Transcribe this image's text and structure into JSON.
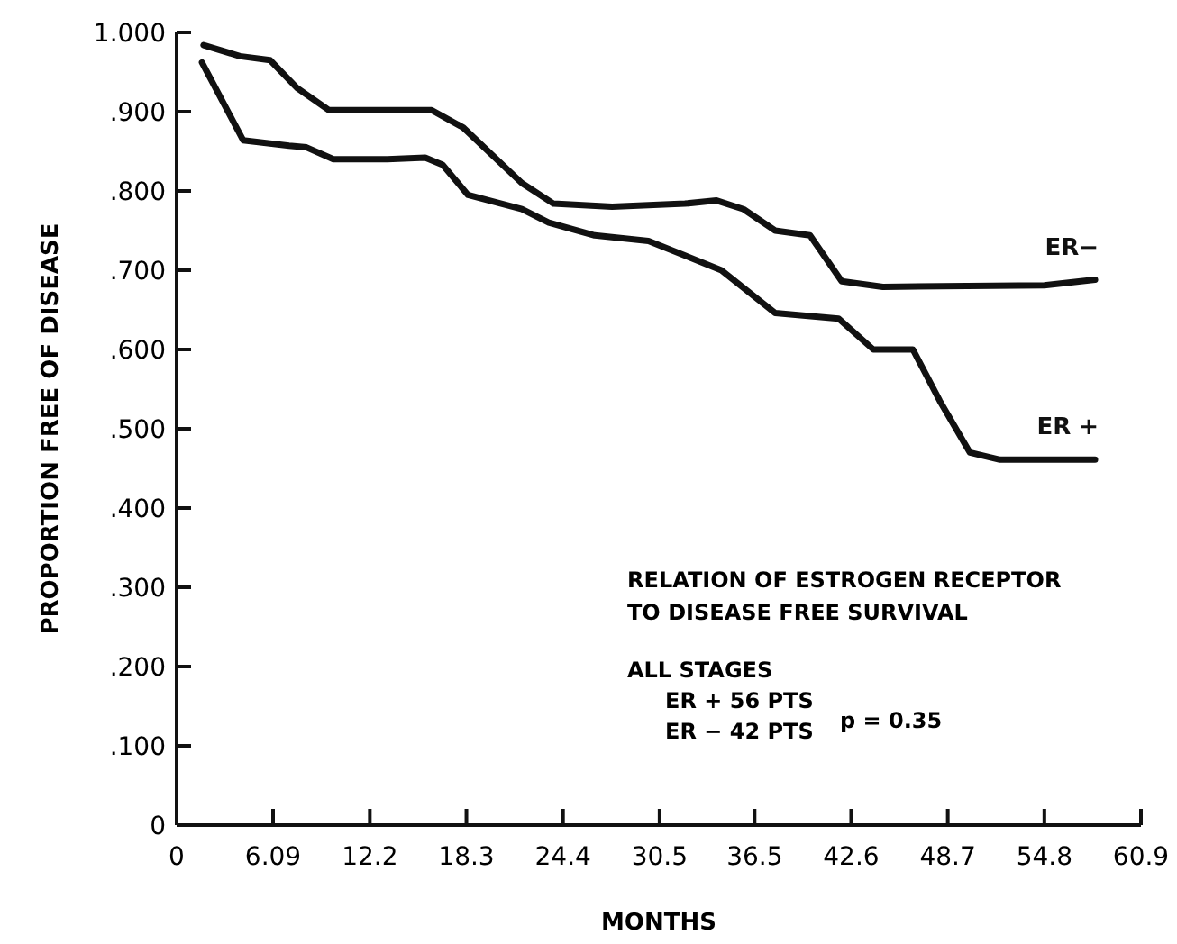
{
  "chart_data": {
    "type": "line",
    "xlabel": "MONTHS",
    "ylabel": "PROPORTION FREE OF DISEASE",
    "xlim": [
      0,
      60.9
    ],
    "xticks": [
      0,
      6.09,
      12.2,
      18.3,
      24.4,
      30.5,
      36.5,
      42.6,
      48.7,
      54.8,
      60.9
    ],
    "ylim": [
      0,
      1
    ],
    "yticks": [
      0,
      {
        "value": 0.1,
        "label": ".100"
      },
      {
        "value": 0.2,
        "label": ".200"
      },
      {
        "value": 0.3,
        "label": ".300"
      },
      {
        "value": 0.4,
        "label": ".400"
      },
      {
        "value": 0.5,
        "label": ".500"
      },
      {
        "value": 0.6,
        "label": ".600"
      },
      {
        "value": 0.7,
        "label": ".700"
      },
      {
        "value": 0.8,
        "label": ".800"
      },
      {
        "value": 0.9,
        "label": ".900"
      },
      {
        "value": 1,
        "label": "1.000"
      }
    ],
    "grid": false,
    "marker": "none",
    "line_style": "solid",
    "series": [
      {
        "name": "ER−",
        "color": "#111111",
        "x": [
          1.7,
          4.0,
          5.9,
          7.6,
          9.6,
          16.1,
          18.1,
          21.8,
          23.8,
          27.5,
          32.1,
          34.1,
          35.8,
          37.8,
          40.0,
          42.0,
          44.6,
          54.8,
          58.0
        ],
        "values": [
          0.984,
          0.97,
          0.965,
          0.93,
          0.902,
          0.902,
          0.88,
          0.81,
          0.784,
          0.78,
          0.784,
          0.788,
          0.777,
          0.75,
          0.744,
          0.686,
          0.679,
          0.681,
          0.688
        ]
      },
      {
        "name": "ER +",
        "color": "#111111",
        "x": [
          1.6,
          4.2,
          7.1,
          8.2,
          9.9,
          13.3,
          15.7,
          16.8,
          18.4,
          21.8,
          23.5,
          26.4,
          29.8,
          34.4,
          37.8,
          41.8,
          44.0,
          46.5,
          48.2,
          50.1,
          52.0,
          58.0
        ],
        "values": [
          0.962,
          0.864,
          0.857,
          0.855,
          0.84,
          0.84,
          0.842,
          0.833,
          0.795,
          0.777,
          0.76,
          0.744,
          0.737,
          0.7,
          0.646,
          0.639,
          0.6,
          0.6,
          0.535,
          0.47,
          0.461,
          0.461
        ]
      }
    ],
    "annotations": [
      "RELATION OF ESTROGEN RECEPTOR",
      "TO DISEASE FREE SURVIVAL",
      "ALL STAGES",
      "ER + 56 PTS",
      "ER − 42 PTS",
      "p = 0.35"
    ]
  }
}
